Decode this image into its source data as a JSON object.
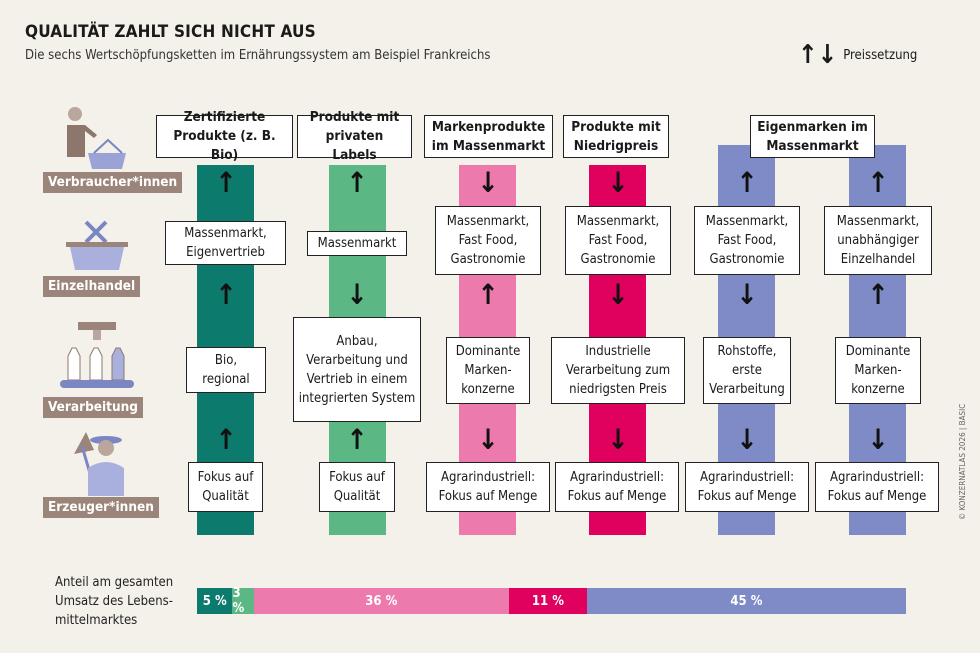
{
  "title": "QUALITÄT ZAHLT SICH NICHT AUS",
  "subtitle": "Die sechs Wertschöpfungsketten im Ernährungssystem am Beispiel Frankreichs",
  "legend": {
    "arrows": "↑↓",
    "label": "Preissetzung"
  },
  "stages": [
    "Verbraucher*innen",
    "Einzelhandel",
    "Verarbeitung",
    "Erzeuger*innen"
  ],
  "colors": {
    "teal": "#0d7a6e",
    "green": "#5bb885",
    "pink": "#ec7aad",
    "magenta": "#e0005e",
    "purple": "#7f8bc6",
    "stage": "#9b8479",
    "background": "#f4f1ea"
  },
  "chains": [
    {
      "header": "Zertifizierte Produkte (z. B. Bio)",
      "arrows": [
        "↑",
        "↑",
        "↑"
      ],
      "retail": "Massenmarkt, Eigenvertrieb",
      "processing": "Bio, regional",
      "production": "Fokus auf Qualität"
    },
    {
      "header": "Produkte mit privaten Labels",
      "arrows": [
        "↑",
        "↓",
        "↑"
      ],
      "retail": "Massenmarkt",
      "processing": "Anbau, Verarbeitung und Vertrieb in einem integrierten System",
      "production": "Fokus auf Qualität"
    },
    {
      "header": "Markenprodukte im Massenmarkt",
      "arrows": [
        "↓",
        "↑",
        "↓"
      ],
      "retail": "Massenmarkt, Fast Food, Gastronomie",
      "processing": "Dominante Marken-konzerne",
      "production": "Agrarindustriell: Fokus auf Menge"
    },
    {
      "header": "Produkte mit Niedrigpreis",
      "arrows": [
        "↓",
        "↓",
        "↓"
      ],
      "retail": "Massenmarkt, Fast Food, Gastronomie",
      "processing": "Industrielle Verarbeitung zum niedrigsten Preis",
      "production": "Agrarindustriell: Fokus auf Menge"
    },
    {
      "arrows": [
        "↑",
        "↓",
        "↓"
      ],
      "retail": "Massenmarkt, Fast Food, Gastronomie",
      "processing": "Rohstoffe, erste Verarbeitung",
      "production": "Agrarindustriell: Fokus auf Menge"
    },
    {
      "arrows": [
        "↑",
        "↑",
        "↓"
      ],
      "retail": "Massenmarkt, unabhängiger Einzelhandel",
      "processing": "Dominante Marken-konzerne",
      "production": "Agrarindustriell: Fokus auf Menge"
    }
  ],
  "shared_header": "Eigenmarken im Massenmarkt",
  "share": {
    "label": "Anteil am gesamten Umsatz des Lebens-mittelmarktes",
    "values": [
      5,
      3,
      36,
      11,
      45
    ],
    "labels": [
      "5 %",
      "3 %",
      "36 %",
      "11 %",
      "45 %"
    ]
  },
  "copyright": "© KONZERNATLAS 2026 | BASIC"
}
